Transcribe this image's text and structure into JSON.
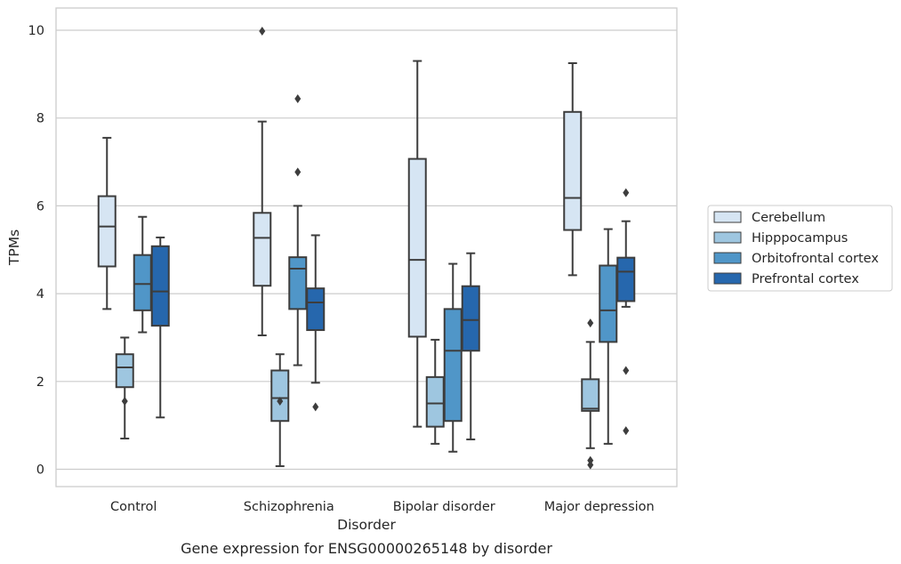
{
  "caption": "Gene expression for ENSG00000265148 by disorder",
  "chart_data": {
    "type": "box",
    "xlabel": "Disorder",
    "ylabel": "TPMs",
    "ylim": [
      -0.4,
      10.5
    ],
    "yticks": [
      "0",
      "2",
      "4",
      "6",
      "8",
      "10"
    ],
    "grid": "horizontal",
    "legend_position": "right",
    "categories": [
      "Control",
      "Schizophrenia",
      "Bipolar disorder",
      "Major depression"
    ],
    "series": [
      {
        "name": "Cerebellum",
        "color": "#d6e5f3",
        "boxes": [
          {
            "min": 3.65,
            "q1": 4.62,
            "median": 5.53,
            "q3": 6.22,
            "max": 7.55,
            "outliers": []
          },
          {
            "min": 3.05,
            "q1": 4.18,
            "median": 5.27,
            "q3": 5.84,
            "max": 7.92,
            "outliers": [
              9.98
            ]
          },
          {
            "min": 0.97,
            "q1": 3.02,
            "median": 4.77,
            "q3": 7.07,
            "max": 9.3,
            "outliers": []
          },
          {
            "min": 4.42,
            "q1": 5.45,
            "median": 6.18,
            "q3": 8.14,
            "max": 9.25,
            "outliers": []
          }
        ]
      },
      {
        "name": "Hipppocampus",
        "color": "#9ec6e0",
        "boxes": [
          {
            "min": 0.7,
            "q1": 1.87,
            "median": 2.32,
            "q3": 2.62,
            "max": 3.0,
            "outliers": [
              1.55
            ]
          },
          {
            "min": 0.07,
            "q1": 1.1,
            "median": 1.62,
            "q3": 2.25,
            "max": 2.62,
            "outliers": [
              1.55
            ]
          },
          {
            "min": 0.58,
            "q1": 0.97,
            "median": 1.5,
            "q3": 2.1,
            "max": 2.95,
            "outliers": []
          },
          {
            "min": 0.48,
            "q1": 1.33,
            "median": 1.38,
            "q3": 2.05,
            "max": 2.9,
            "outliers": [
              3.33,
              0.2,
              0.1
            ]
          }
        ]
      },
      {
        "name": "Orbitofrontal cortex",
        "color": "#5096c8",
        "boxes": [
          {
            "min": 3.12,
            "q1": 3.62,
            "median": 4.22,
            "q3": 4.88,
            "max": 5.75,
            "outliers": []
          },
          {
            "min": 2.37,
            "q1": 3.65,
            "median": 4.57,
            "q3": 4.83,
            "max": 6.0,
            "outliers": [
              8.44,
              6.77
            ]
          },
          {
            "min": 0.4,
            "q1": 1.1,
            "median": 2.7,
            "q3": 3.65,
            "max": 4.68,
            "outliers": []
          },
          {
            "min": 0.58,
            "q1": 2.9,
            "median": 3.62,
            "q3": 4.64,
            "max": 5.47,
            "outliers": []
          }
        ]
      },
      {
        "name": "Prefrontal cortex",
        "color": "#2667ad",
        "boxes": [
          {
            "min": 1.18,
            "q1": 3.27,
            "median": 4.05,
            "q3": 5.08,
            "max": 5.28,
            "outliers": []
          },
          {
            "min": 1.97,
            "q1": 3.17,
            "median": 3.8,
            "q3": 4.12,
            "max": 5.33,
            "outliers": [
              1.42
            ]
          },
          {
            "min": 0.68,
            "q1": 2.7,
            "median": 3.4,
            "q3": 4.17,
            "max": 4.92,
            "outliers": []
          },
          {
            "min": 3.7,
            "q1": 3.83,
            "median": 4.5,
            "q3": 4.82,
            "max": 5.65,
            "outliers": [
              6.3,
              2.25,
              0.88
            ]
          }
        ]
      }
    ]
  }
}
